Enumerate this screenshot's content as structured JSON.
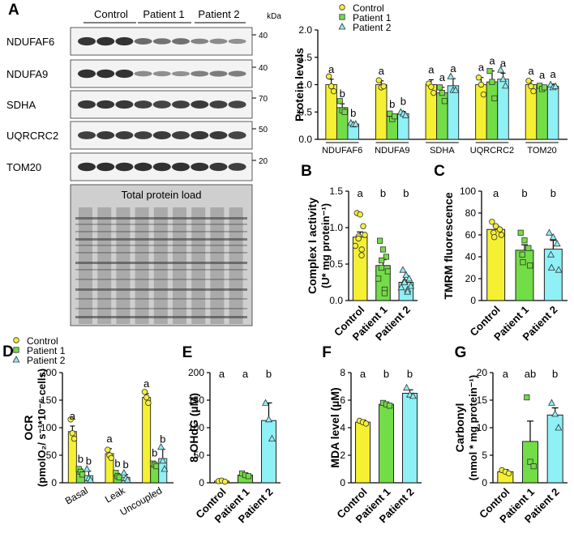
{
  "colors": {
    "control": "#f5f032",
    "patient1": "#72dd46",
    "patient2": "#8ff0f6",
    "grey": "#d9d9d9",
    "blot_bg": "#f3f3f3",
    "band": "#1e1e1e"
  },
  "legend": [
    "Control",
    "Patient 1",
    "Patient 2"
  ],
  "blot": {
    "panel_label": "A",
    "groups": [
      "Control",
      "Patient 1",
      "Patient 2"
    ],
    "kda_header": "kDa",
    "rows": [
      {
        "name": "NDUFAF6",
        "kda": "40",
        "intensity": [
          0.92,
          0.95,
          0.93,
          0.55,
          0.5,
          0.52,
          0.38,
          0.35,
          0.3
        ]
      },
      {
        "name": "NDUFA9",
        "kda": "40",
        "intensity": [
          0.95,
          0.95,
          0.93,
          0.35,
          0.32,
          0.3,
          0.42,
          0.45,
          0.43
        ]
      },
      {
        "name": "SDHA",
        "kda": "70",
        "intensity": [
          0.9,
          0.92,
          0.9,
          0.85,
          0.82,
          0.85,
          0.88,
          0.85,
          0.8
        ]
      },
      {
        "name": "UQRCRC2",
        "kda": "50",
        "intensity": [
          0.85,
          0.88,
          0.87,
          0.85,
          0.88,
          0.86,
          0.9,
          0.88,
          0.82
        ]
      },
      {
        "name": "TOM20",
        "kda": "20",
        "intensity": [
          0.95,
          0.96,
          0.95,
          0.94,
          0.95,
          0.95,
          0.93,
          0.9,
          0.85
        ]
      }
    ],
    "total_label": "Total protein load"
  },
  "chart_data": [
    {
      "panel": "A",
      "type": "bar",
      "ylabel": "Protein levels",
      "ylim": [
        0.0,
        2.0
      ],
      "yticks": [
        "0.0",
        "0.5",
        "1.0",
        "1.5",
        "2.0"
      ],
      "categories": [
        "NDUFAF6",
        "NDUFA9",
        "SDHA",
        "UQRCRC2",
        "TOM20"
      ],
      "series": [
        {
          "name": "Control",
          "values": [
            1.0,
            1.0,
            1.0,
            1.0,
            1.0
          ],
          "errors": [
            0.1,
            0.07,
            0.09,
            0.13,
            0.07
          ],
          "points": [
            [
              1.15,
              0.97,
              0.88
            ],
            [
              1.08,
              0.95,
              0.97
            ],
            [
              1.02,
              0.96,
              0.85
            ],
            [
              1.13,
              1.0,
              0.82
            ],
            [
              1.07,
              0.97,
              0.88
            ]
          ]
        },
        {
          "name": "Patient 1",
          "values": [
            0.58,
            0.42,
            0.85,
            1.05,
            0.95
          ],
          "errors": [
            0.07,
            0.04,
            0.1,
            0.2,
            0.04
          ],
          "points": [
            [
              0.7,
              0.53,
              0.5
            ],
            [
              0.47,
              0.37,
              0.42
            ],
            [
              0.95,
              0.85,
              0.7
            ],
            [
              1.25,
              1.05,
              0.75
            ],
            [
              0.98,
              0.92,
              0.95
            ]
          ]
        },
        {
          "name": "Patient 2",
          "values": [
            0.28,
            0.47,
            0.98,
            1.1,
            0.97
          ],
          "errors": [
            0.02,
            0.04,
            0.13,
            0.11,
            0.04
          ],
          "points": [
            [
              0.3,
              0.27,
              0.28
            ],
            [
              0.5,
              0.47,
              0.44
            ],
            [
              1.15,
              0.9,
              0.9
            ],
            [
              1.27,
              1.1,
              0.98
            ],
            [
              1.0,
              0.95,
              0.97
            ]
          ]
        }
      ],
      "letters": [
        [
          "a",
          "b",
          "b"
        ],
        [
          "a",
          "b",
          "b"
        ],
        [
          "a",
          "a",
          "a"
        ],
        [
          "a",
          "a",
          "a"
        ],
        [
          "a",
          "a",
          "a"
        ]
      ]
    },
    {
      "panel": "B",
      "type": "bar",
      "ylabel": "Complex I activity",
      "ylabel2": "(U* mg protein⁻¹)",
      "ylim": [
        0.0,
        1.5
      ],
      "yticks": [
        "0.0",
        "0.5",
        "1.0",
        "1.5"
      ],
      "categories": [
        "Control",
        "Patient 1",
        "Patient 2"
      ],
      "values": [
        0.87,
        0.48,
        0.25
      ],
      "errors": [
        0.07,
        0.08,
        0.03
      ],
      "points": [
        [
          1.2,
          1.18,
          1.02,
          0.88,
          0.85,
          0.9,
          0.75,
          0.7,
          0.62
        ],
        [
          0.82,
          0.7,
          0.6,
          0.55,
          0.45,
          0.4,
          0.3,
          0.15,
          0.1
        ],
        [
          0.42,
          0.35,
          0.3,
          0.27,
          0.25,
          0.2,
          0.18,
          0.15,
          0.12
        ]
      ],
      "letters": [
        "a",
        "b",
        "b"
      ]
    },
    {
      "panel": "C",
      "type": "bar",
      "ylabel": "TMRM fluorescence",
      "ylim": [
        0,
        100
      ],
      "yticks": [
        "0",
        "20",
        "40",
        "60",
        "80",
        "100"
      ],
      "categories": [
        "Control",
        "Patient 1",
        "Patient 2"
      ],
      "values": [
        65,
        46,
        47
      ],
      "errors": [
        3,
        5,
        8
      ],
      "points": [
        [
          72,
          68,
          65,
          62,
          58,
          60
        ],
        [
          62,
          55,
          48,
          42,
          35,
          32
        ],
        [
          62,
          58,
          52,
          42,
          30,
          28
        ]
      ],
      "letters": [
        "a",
        "b",
        "b"
      ]
    },
    {
      "panel": "D",
      "type": "bar",
      "ylabel": "OCR",
      "ylabel2": "(pmolO₂/ s⁻¹*10⁻⁶ cells)",
      "ylim": [
        0,
        200
      ],
      "yticks": [
        "0",
        "50",
        "100",
        "150",
        "200"
      ],
      "categories": [
        "Basal",
        "Leak",
        "Uncoupled"
      ],
      "series": [
        {
          "name": "Control",
          "values": [
            93,
            53,
            155
          ],
          "errors": [
            10,
            9,
            7
          ],
          "points": [
            [
              115,
              90,
              80
            ],
            [
              60,
              50,
              45
            ],
            [
              165,
              155,
              145
            ]
          ]
        },
        {
          "name": "Patient 1",
          "values": [
            20,
            13,
            33
          ],
          "errors": [
            5,
            4,
            3
          ],
          "points": [
            [
              25,
              20,
              15
            ],
            [
              18,
              12,
              10
            ],
            [
              35,
              33,
              30
            ]
          ]
        },
        {
          "name": "Patient 2",
          "values": [
            13,
            10,
            44
          ],
          "errors": [
            8,
            5,
            17
          ],
          "points": [
            [
              25,
              8,
              5
            ],
            [
              18,
              8,
              5
            ],
            [
              65,
              40,
              25
            ]
          ]
        }
      ],
      "letters": [
        [
          "a",
          "b",
          "b"
        ],
        [
          "a",
          "b",
          "b"
        ],
        [
          "a",
          "b",
          "b"
        ]
      ]
    },
    {
      "panel": "E",
      "type": "bar",
      "ylabel": "8-OHdG (µM)",
      "ylim": [
        0,
        200
      ],
      "yticks": [
        "0",
        "50",
        "100",
        "150",
        "200"
      ],
      "categories": [
        "Control",
        "Patient 1",
        "Patient 2"
      ],
      "values": [
        3,
        14,
        113
      ],
      "errors": [
        1,
        3,
        32
      ],
      "points": [
        [
          3,
          4,
          2
        ],
        [
          17,
          14,
          12
        ],
        [
          145,
          115,
          80
        ]
      ],
      "letters": [
        "a",
        "a",
        "b"
      ]
    },
    {
      "panel": "F",
      "type": "bar",
      "ylabel": "MDA level (µM)",
      "ylim": [
        0,
        8
      ],
      "yticks": [
        "0",
        "2",
        "4",
        "6",
        "8"
      ],
      "categories": [
        "Control",
        "Patient 1",
        "Patient 2"
      ],
      "values": [
        4.4,
        5.7,
        6.5
      ],
      "errors": [
        0.15,
        0.1,
        0.25
      ],
      "points": [
        [
          4.5,
          4.4,
          4.3
        ],
        [
          5.8,
          5.7,
          5.6
        ],
        [
          6.9,
          6.4,
          6.3
        ]
      ],
      "letters": [
        "a",
        "b",
        "b"
      ]
    },
    {
      "panel": "G",
      "type": "bar",
      "ylabel": "Carbonyl",
      "ylabel2": "(nmol * mg protein⁻¹)",
      "ylim": [
        0,
        20
      ],
      "yticks": [
        "0",
        "5",
        "10",
        "15",
        "20"
      ],
      "categories": [
        "Control",
        "Patient 1",
        "Patient 2"
      ],
      "values": [
        2,
        7.5,
        12.3
      ],
      "errors": [
        0.4,
        3.7,
        1.3
      ],
      "points": [
        [
          2.3,
          2.0,
          1.7
        ],
        [
          15.5,
          3.8,
          3.0
        ],
        [
          14.5,
          12.5,
          10
        ]
      ],
      "letters": [
        "a",
        "ab",
        "b"
      ]
    }
  ]
}
